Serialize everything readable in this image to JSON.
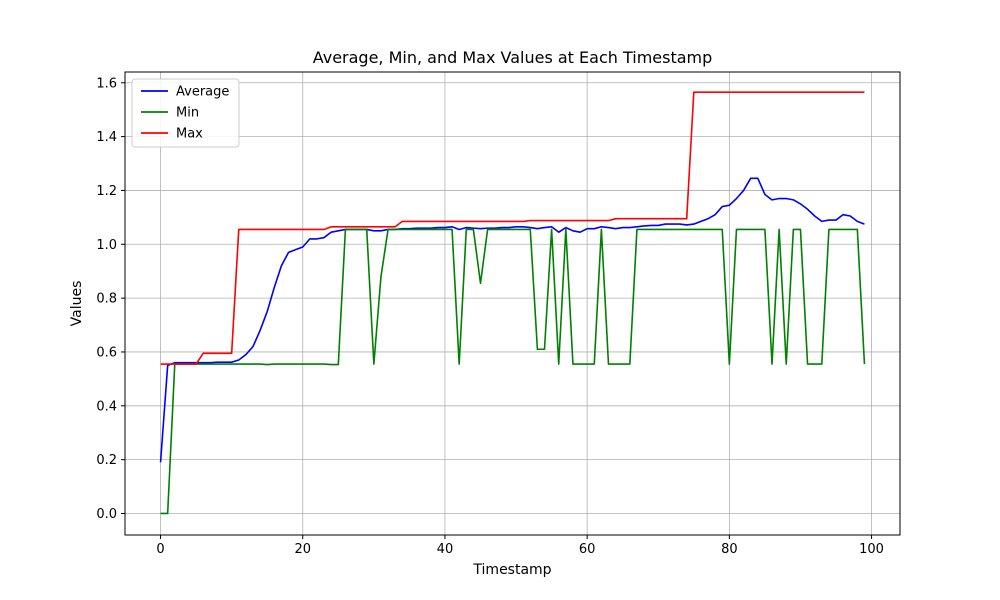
{
  "chart_data": {
    "type": "line",
    "title": "Average, Min, and Max Values at Each Timestamp",
    "xlabel": "Timestamp",
    "ylabel": "Values",
    "xlim": [
      -5,
      104
    ],
    "ylim": [
      -0.08,
      1.64
    ],
    "xticks": [
      0,
      20,
      40,
      60,
      80,
      100
    ],
    "yticks": [
      0.0,
      0.2,
      0.4,
      0.6,
      0.8,
      1.0,
      1.2,
      1.4,
      1.6
    ],
    "xtick_labels": [
      "0",
      "20",
      "40",
      "60",
      "80",
      "100"
    ],
    "ytick_labels": [
      "0.0",
      "0.2",
      "0.4",
      "0.6",
      "0.8",
      "1.0",
      "1.2",
      "1.4",
      "1.6"
    ],
    "grid": true,
    "legend_position": "top-left",
    "x": [
      0,
      1,
      2,
      3,
      4,
      5,
      6,
      7,
      8,
      9,
      10,
      11,
      12,
      13,
      14,
      15,
      16,
      17,
      18,
      19,
      20,
      21,
      22,
      23,
      24,
      25,
      26,
      27,
      28,
      29,
      30,
      31,
      32,
      33,
      34,
      35,
      36,
      37,
      38,
      39,
      40,
      41,
      42,
      43,
      44,
      45,
      46,
      47,
      48,
      49,
      50,
      51,
      52,
      53,
      54,
      55,
      56,
      57,
      58,
      59,
      60,
      61,
      62,
      63,
      64,
      65,
      66,
      67,
      68,
      69,
      70,
      71,
      72,
      73,
      74,
      75,
      76,
      77,
      78,
      79,
      80,
      81,
      82,
      83,
      84,
      85,
      86,
      87,
      88,
      89,
      90,
      91,
      92,
      93,
      94,
      95,
      96,
      97,
      98,
      99
    ],
    "series": [
      {
        "name": "Average",
        "color": "#0000ff",
        "values": [
          0.19,
          0.55,
          0.56,
          0.56,
          0.56,
          0.56,
          0.56,
          0.56,
          0.562,
          0.562,
          0.562,
          0.57,
          0.59,
          0.62,
          0.68,
          0.75,
          0.84,
          0.92,
          0.97,
          0.98,
          0.99,
          1.02,
          1.02,
          1.025,
          1.045,
          1.05,
          1.055,
          1.055,
          1.055,
          1.055,
          1.05,
          1.05,
          1.055,
          1.055,
          1.058,
          1.058,
          1.06,
          1.06,
          1.06,
          1.062,
          1.062,
          1.065,
          1.055,
          1.062,
          1.06,
          1.058,
          1.06,
          1.06,
          1.062,
          1.062,
          1.065,
          1.065,
          1.062,
          1.058,
          1.062,
          1.065,
          1.045,
          1.062,
          1.05,
          1.045,
          1.058,
          1.058,
          1.065,
          1.062,
          1.058,
          1.062,
          1.062,
          1.065,
          1.068,
          1.07,
          1.07,
          1.075,
          1.075,
          1.075,
          1.072,
          1.075,
          1.085,
          1.095,
          1.11,
          1.14,
          1.145,
          1.17,
          1.2,
          1.245,
          1.245,
          1.185,
          1.165,
          1.17,
          1.17,
          1.165,
          1.15,
          1.13,
          1.105,
          1.085,
          1.09,
          1.09,
          1.11,
          1.105,
          1.085,
          1.075
        ]
      },
      {
        "name": "Min",
        "color": "#008000",
        "values": [
          0.0,
          0.0,
          0.555,
          0.555,
          0.555,
          0.555,
          0.555,
          0.555,
          0.555,
          0.555,
          0.555,
          0.555,
          0.555,
          0.555,
          0.555,
          0.553,
          0.555,
          0.555,
          0.555,
          0.555,
          0.555,
          0.555,
          0.555,
          0.555,
          0.553,
          0.553,
          1.055,
          1.055,
          1.055,
          1.055,
          0.555,
          0.88,
          1.055,
          1.055,
          1.055,
          1.055,
          1.055,
          1.055,
          1.055,
          1.055,
          1.055,
          1.055,
          0.555,
          1.055,
          1.055,
          0.855,
          1.055,
          1.055,
          1.055,
          1.055,
          1.055,
          1.055,
          1.055,
          0.61,
          0.61,
          1.055,
          0.555,
          1.055,
          0.555,
          0.555,
          0.555,
          0.555,
          1.055,
          0.555,
          0.555,
          0.555,
          0.555,
          1.055,
          1.055,
          1.055,
          1.055,
          1.055,
          1.055,
          1.055,
          1.055,
          1.055,
          1.055,
          1.055,
          1.055,
          1.055,
          0.555,
          1.055,
          1.055,
          1.055,
          1.055,
          1.055,
          0.555,
          1.055,
          0.555,
          1.055,
          1.055,
          0.555,
          0.555,
          0.555,
          1.055,
          1.055,
          1.055,
          1.055,
          1.055,
          0.555
        ]
      },
      {
        "name": "Max",
        "color": "#ff0000",
        "values": [
          0.555,
          0.555,
          0.555,
          0.555,
          0.555,
          0.555,
          0.595,
          0.595,
          0.595,
          0.595,
          0.595,
          1.055,
          1.055,
          1.055,
          1.055,
          1.055,
          1.055,
          1.055,
          1.055,
          1.055,
          1.055,
          1.055,
          1.055,
          1.055,
          1.065,
          1.065,
          1.065,
          1.065,
          1.065,
          1.065,
          1.065,
          1.065,
          1.065,
          1.065,
          1.085,
          1.085,
          1.085,
          1.085,
          1.085,
          1.085,
          1.085,
          1.085,
          1.085,
          1.085,
          1.085,
          1.085,
          1.085,
          1.085,
          1.085,
          1.085,
          1.085,
          1.085,
          1.088,
          1.088,
          1.088,
          1.088,
          1.088,
          1.088,
          1.088,
          1.088,
          1.088,
          1.088,
          1.088,
          1.088,
          1.095,
          1.095,
          1.095,
          1.095,
          1.095,
          1.095,
          1.095,
          1.095,
          1.095,
          1.095,
          1.095,
          1.565,
          1.565,
          1.565,
          1.565,
          1.565,
          1.565,
          1.565,
          1.565,
          1.565,
          1.565,
          1.565,
          1.565,
          1.565,
          1.565,
          1.565,
          1.565,
          1.565,
          1.565,
          1.565,
          1.565,
          1.565,
          1.565,
          1.565,
          1.565,
          1.565
        ]
      }
    ]
  }
}
